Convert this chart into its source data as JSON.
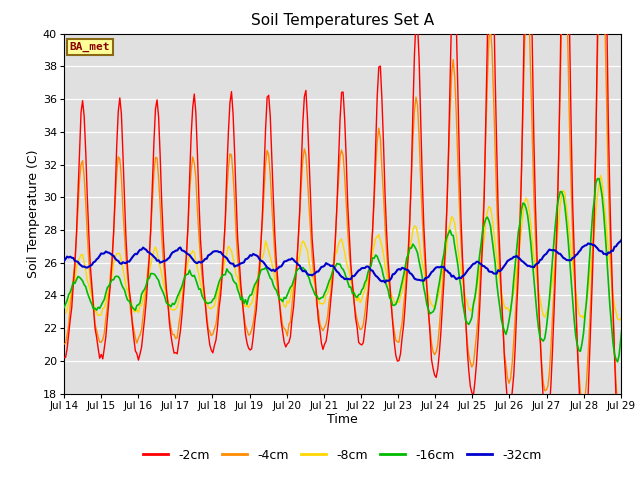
{
  "title": "Soil Temperatures Set A",
  "xlabel": "Time",
  "ylabel": "Soil Temperature (C)",
  "ylim": [
    18,
    40
  ],
  "annotation": "BA_met",
  "annotation_color": "#8B0000",
  "annotation_bg": "#FFFF99",
  "background_color": "#E0E0E0",
  "colors": {
    "-2cm": "#FF0000",
    "-4cm": "#FF8C00",
    "-8cm": "#FFD700",
    "-16cm": "#00BB00",
    "-32cm": "#0000CC"
  },
  "x_ticks": [
    "Jul 14",
    "Jul 15",
    "Jul 16",
    "Jul 17",
    "Jul 18",
    "Jul 19",
    "Jul 20",
    "Jul 21",
    "Jul 22",
    "Jul 23",
    "Jul 24",
    "Jul 25",
    "Jul 26",
    "Jul 27",
    "Jul 28",
    "Jul 29"
  ],
  "n_points": 384
}
